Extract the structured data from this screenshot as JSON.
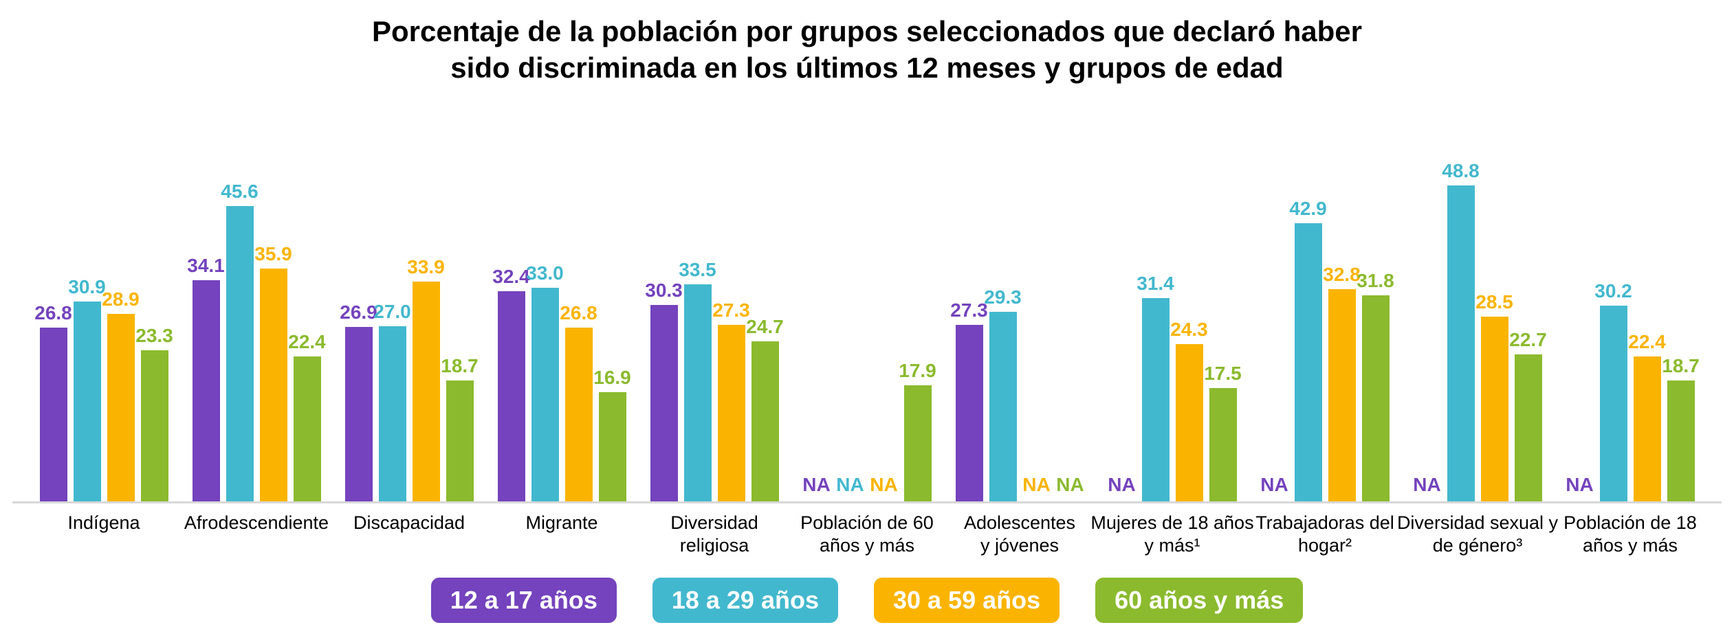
{
  "title": {
    "line1": "Porcentaje de la población por grupos seleccionados que declaró haber",
    "line2": "sido discriminada en los últimos 12 meses y grupos de edad"
  },
  "chart_data": {
    "type": "bar",
    "title": "Porcentaje de la población por grupos seleccionados que declaró haber sido discriminada en los últimos 12 meses y grupos de edad",
    "categories": [
      "Indígena",
      "Afrodescendiente",
      "Discapacidad",
      "Migrante",
      "Diversidad\nreligiosa",
      "Población de 60\naños y más",
      "Adolescentes\ny jóvenes",
      "Mujeres de 18 años\ny más¹",
      "Trabajadoras del\nhogar²",
      "Diversidad sexual y\nde género³",
      "Población de 18\naños y más"
    ],
    "series": [
      {
        "name": "12 a 17 años",
        "color": "#7443BD",
        "values": [
          26.8,
          34.1,
          26.9,
          32.4,
          30.3,
          null,
          27.3,
          null,
          null,
          null,
          null
        ]
      },
      {
        "name": "18 a 29 años",
        "color": "#42B8CE",
        "values": [
          30.9,
          45.6,
          27.0,
          33.0,
          33.5,
          null,
          29.3,
          31.4,
          42.9,
          48.8,
          30.2
        ]
      },
      {
        "name": "30 a 59 años",
        "color": "#FAB400",
        "values": [
          28.9,
          35.9,
          33.9,
          26.8,
          27.3,
          null,
          null,
          24.3,
          32.8,
          28.5,
          22.4
        ]
      },
      {
        "name": "60 años y más",
        "color": "#8BBA2E",
        "values": [
          23.3,
          22.4,
          18.7,
          16.9,
          24.7,
          17.9,
          null,
          17.5,
          31.8,
          22.7,
          18.7
        ]
      }
    ],
    "na_text": "NA",
    "value_decimals": 1,
    "ylim": [
      0,
      50
    ],
    "grid": false,
    "legend_position": "bottom"
  },
  "legend": [
    {
      "label": "12 a 17 años",
      "color": "#7443BD"
    },
    {
      "label": "18 a 29 años",
      "color": "#42B8CE"
    },
    {
      "label": "30 a 59 años",
      "color": "#FAB400"
    },
    {
      "label": "60 años y más",
      "color": "#8BBA2E"
    }
  ],
  "axis_color": "#D8D8D8"
}
